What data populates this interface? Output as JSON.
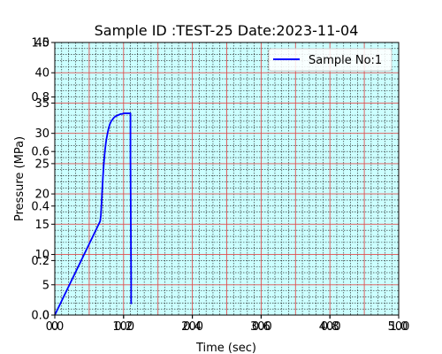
{
  "chart_data": {
    "type": "line",
    "title": "Sample ID :TEST-25 Date:2023-11-04",
    "xlabel": "Time (sec)",
    "ylabel": "Pressure (MPa)",
    "xlim": [
      0,
      500
    ],
    "ylim": [
      0,
      45
    ],
    "x_ticks": [
      0,
      100,
      200,
      300,
      400,
      500
    ],
    "x_tick_labels": [
      "0",
      "100",
      "200",
      "300",
      "400",
      "500"
    ],
    "y_ticks": [
      0,
      5,
      10,
      15,
      20,
      25,
      30,
      35,
      40,
      45
    ],
    "y_tick_labels": [
      "0",
      "5",
      "10",
      "15",
      "20",
      "25",
      "30",
      "35",
      "40",
      "45"
    ],
    "ghost_x_ticks": [
      0,
      0.2,
      0.4,
      0.6,
      0.8,
      1.0
    ],
    "ghost_x_tick_labels": [
      "0.0",
      "0.2",
      "0.4",
      "0.6",
      "0.8",
      "1.0"
    ],
    "ghost_y_ticks": [
      0,
      0.2,
      0.4,
      0.6,
      0.8,
      1.0
    ],
    "ghost_y_tick_labels": [
      "0.0",
      "0.2",
      "0.4",
      "0.6",
      "0.8",
      "1.0"
    ],
    "grid": true,
    "minor_grid": true,
    "legend_position": "upper right",
    "colors": {
      "background": "#ccffff",
      "major_grid": "#e05050",
      "minor_grid": "#1a1a1a",
      "line": "#0000ff"
    },
    "series": [
      {
        "name": "Sample No:1",
        "color": "#0000ff",
        "x": [
          0,
          66,
          67,
          68,
          69,
          70,
          71,
          72,
          73,
          74,
          75,
          76,
          77,
          78,
          79,
          80,
          82,
          84,
          86,
          88,
          90,
          92,
          94,
          96,
          98,
          100,
          102,
          104,
          106,
          108,
          109,
          110,
          110,
          111,
          111
        ],
        "y": [
          0,
          15.5,
          16.5,
          18.5,
          20.8,
          22.8,
          24.6,
          26,
          27.2,
          28.2,
          29,
          29.6,
          30.2,
          30.7,
          31.1,
          31.5,
          32,
          32.3,
          32.6,
          32.8,
          32.9,
          33,
          33.1,
          33.2,
          33.2,
          33.3,
          33.3,
          33.3,
          33.3,
          33.3,
          33.3,
          33.3,
          26,
          6,
          1.8
        ]
      }
    ]
  }
}
